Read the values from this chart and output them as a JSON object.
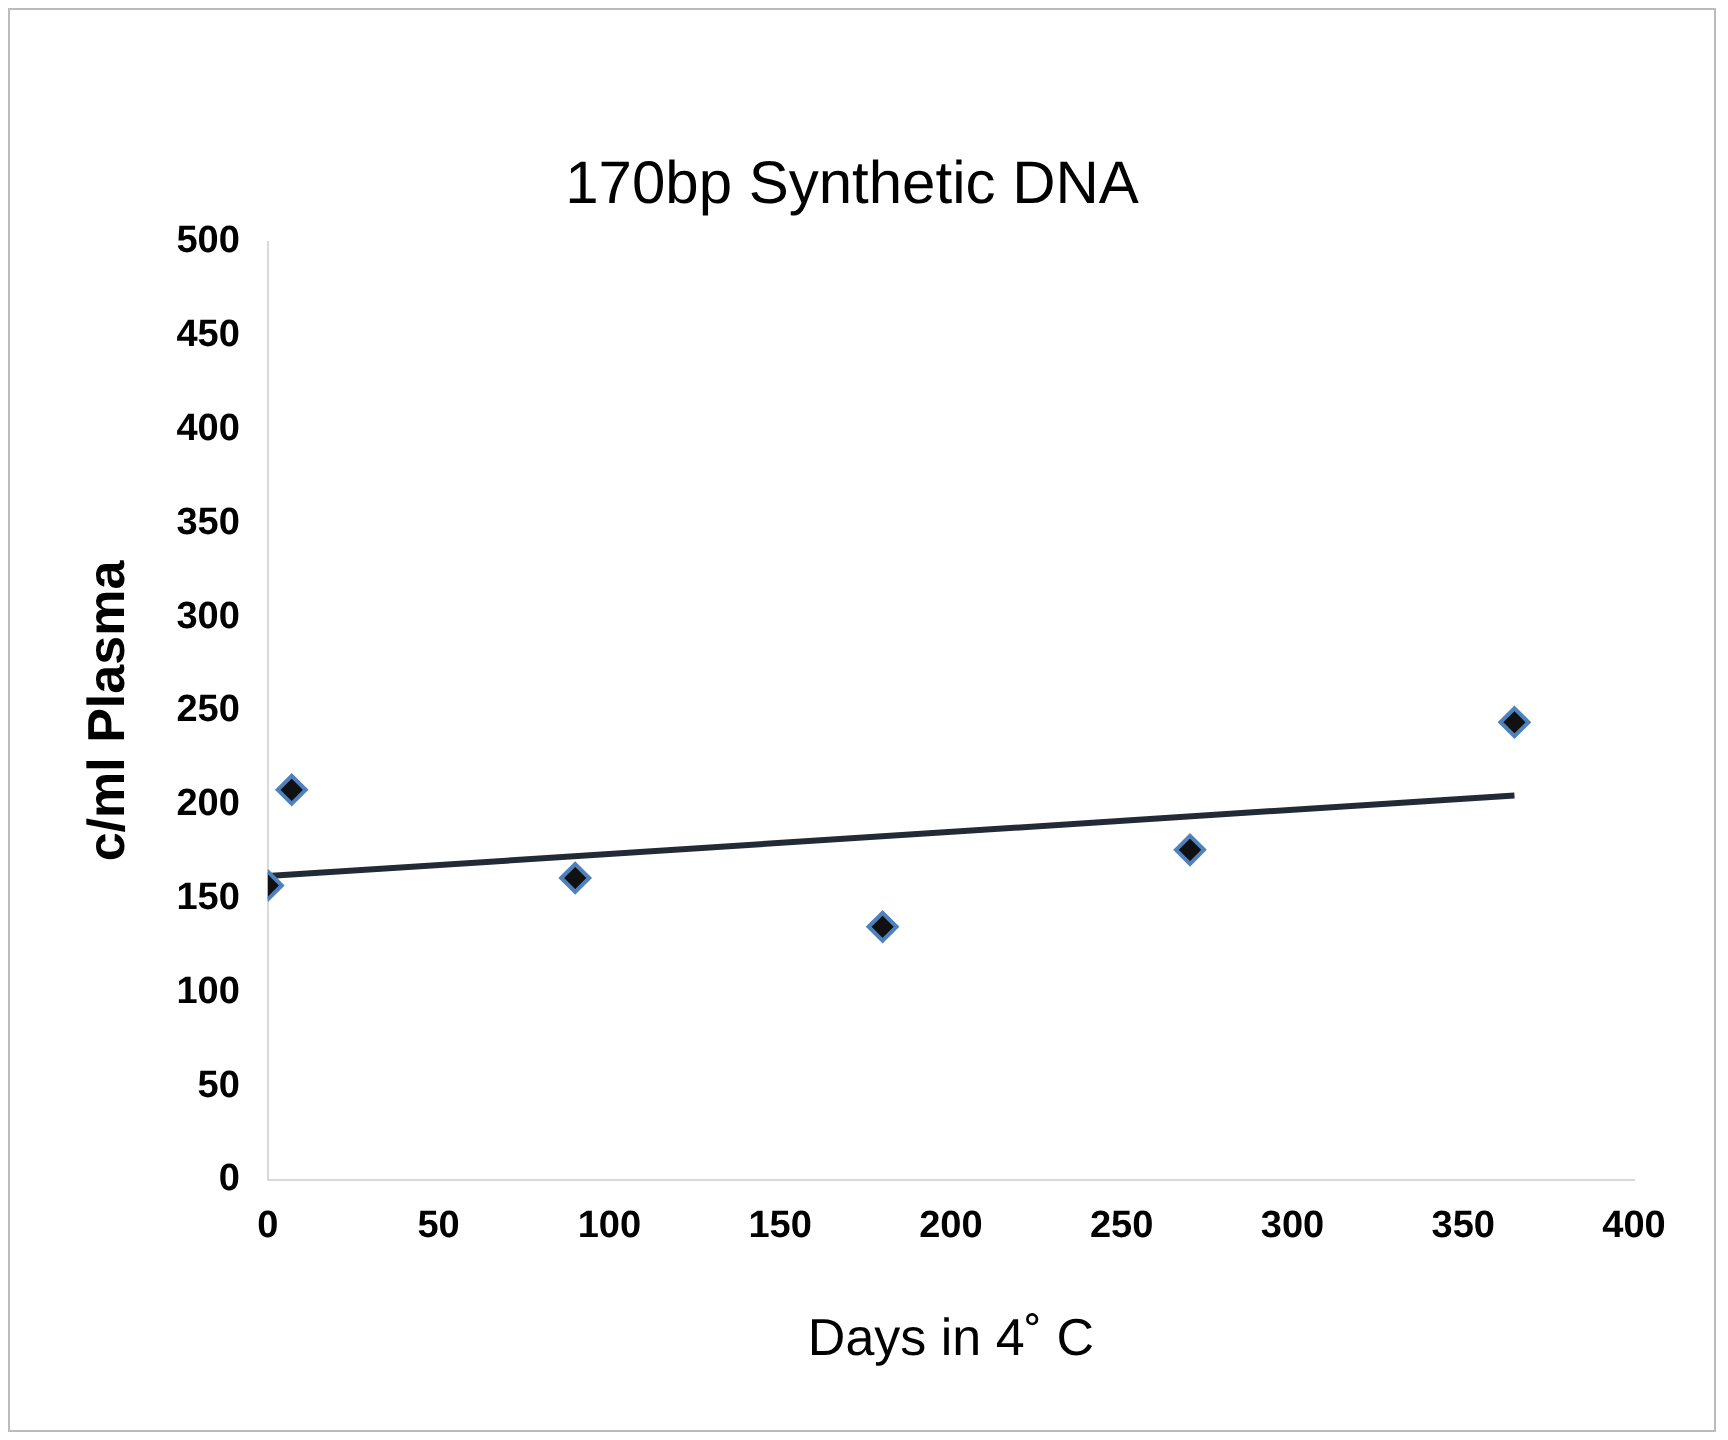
{
  "chart_data": {
    "type": "scatter",
    "title": "170bp Synthetic DNA",
    "xlabel": "Days in 4˚ C",
    "ylabel": "c/ml Plasma",
    "xlim": [
      0,
      400
    ],
    "xticks": [
      0,
      50,
      100,
      150,
      200,
      250,
      300,
      350,
      400
    ],
    "ylim": [
      0,
      500
    ],
    "yticks": [
      0,
      50,
      100,
      150,
      200,
      250,
      300,
      350,
      400,
      450,
      500
    ],
    "grid": false,
    "legend": false,
    "series": [
      {
        "marker": "diamond",
        "color": "#4f81bd",
        "x": [
          0,
          7,
          90,
          180,
          270,
          365
        ],
        "values": [
          157,
          208,
          161,
          135,
          176,
          244
        ]
      },
      {
        "type": "line",
        "color": "#222a35",
        "x": [
          0,
          365
        ],
        "values": [
          162,
          205
        ],
        "line_style": "solid"
      }
    ]
  }
}
